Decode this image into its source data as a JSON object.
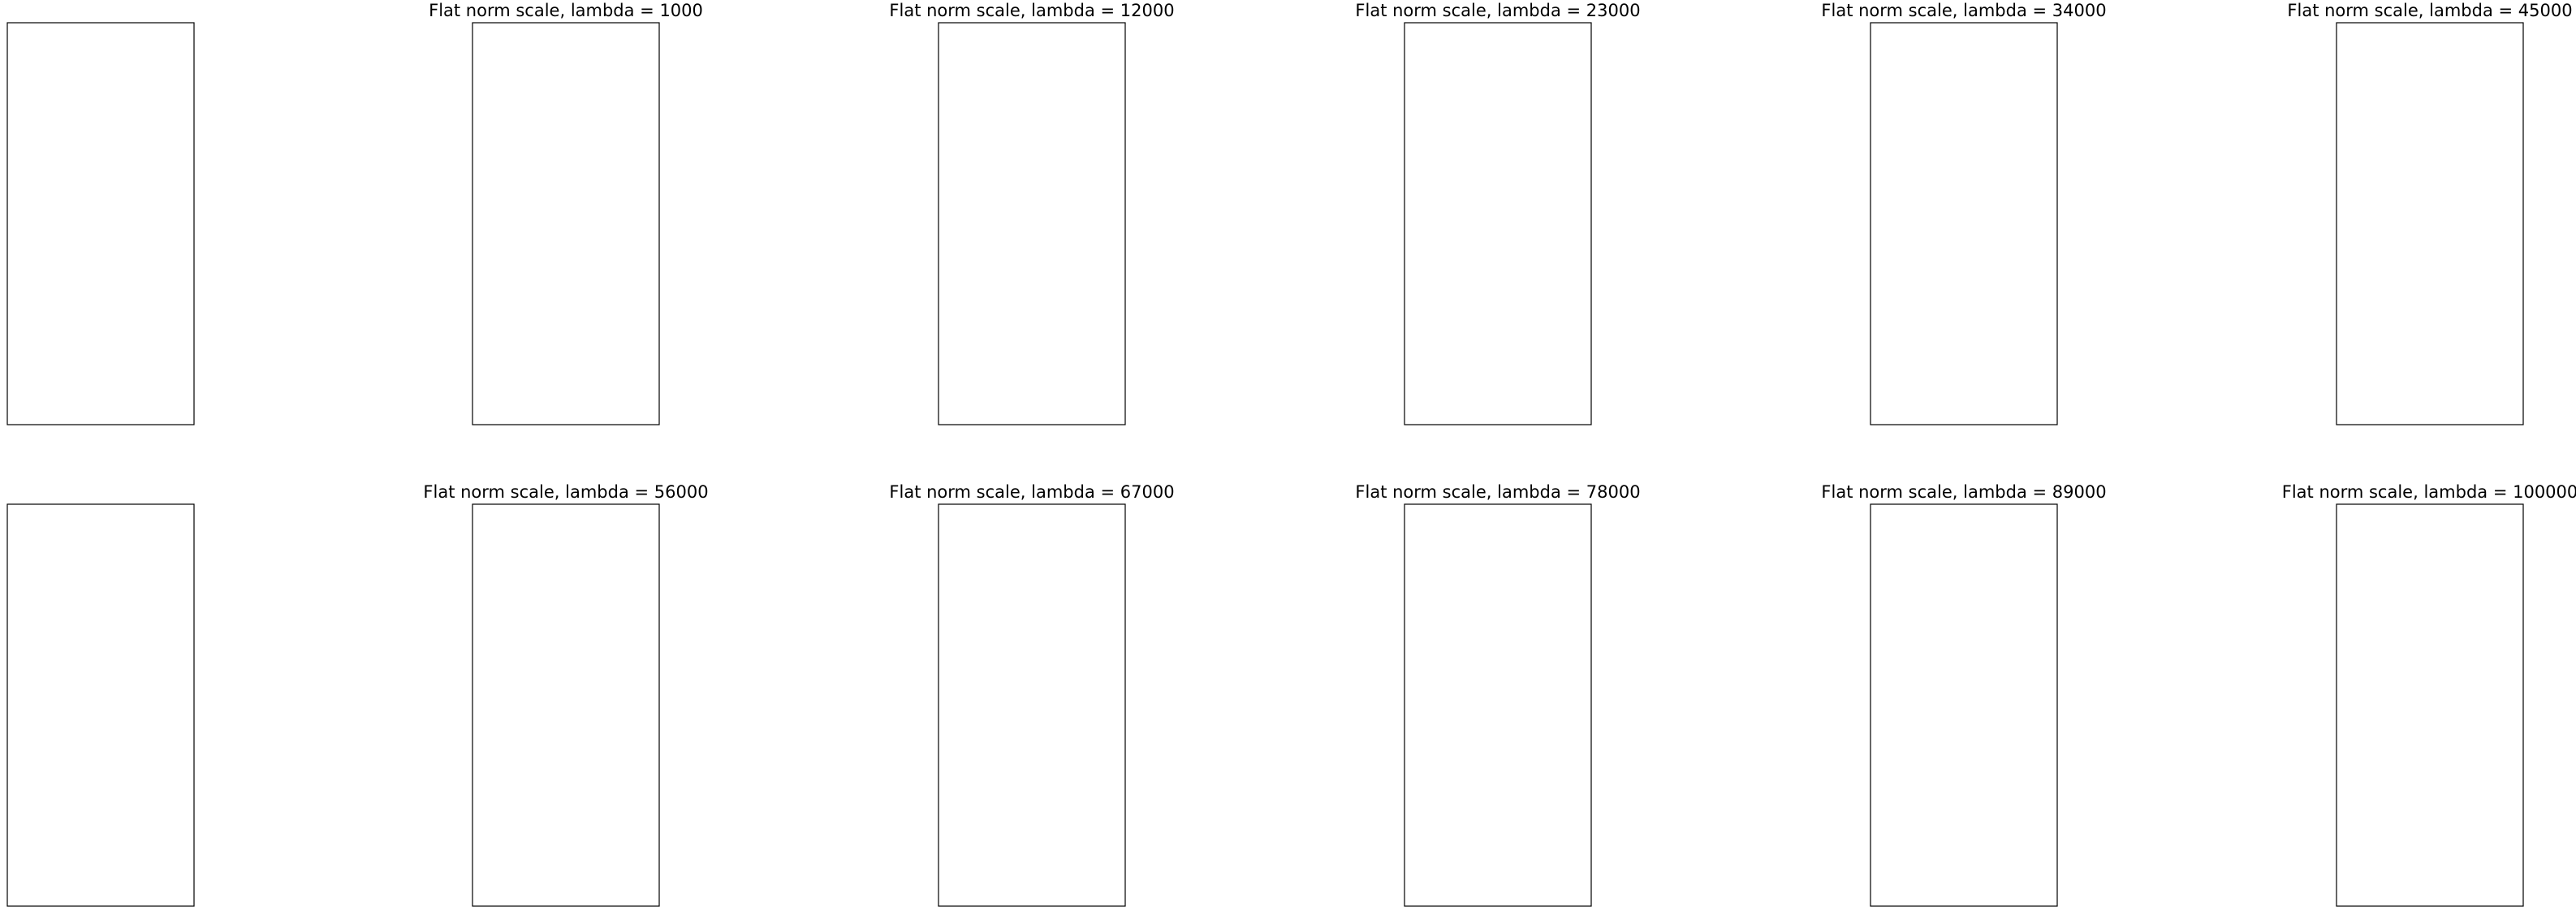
{
  "figure": {
    "panels": [
      {
        "id": "r0c0",
        "kind": "input",
        "title": ""
      },
      {
        "id": "r0c1",
        "kind": "result",
        "title": "Flat norm scale, lambda = 1000",
        "lambda": 1000
      },
      {
        "id": "r0c2",
        "kind": "result",
        "title": "Flat norm scale, lambda = 12000",
        "lambda": 12000
      },
      {
        "id": "r0c3",
        "kind": "result",
        "title": "Flat norm scale, lambda = 23000",
        "lambda": 23000
      },
      {
        "id": "r0c4",
        "kind": "result",
        "title": "Flat norm scale, lambda = 34000",
        "lambda": 34000
      },
      {
        "id": "r0c5",
        "kind": "result",
        "title": "Flat norm scale, lambda = 45000",
        "lambda": 45000
      },
      {
        "id": "r1c0",
        "kind": "pair",
        "title": ""
      },
      {
        "id": "r1c1",
        "kind": "result",
        "title": "Flat norm scale, lambda = 56000",
        "lambda": 56000
      },
      {
        "id": "r1c2",
        "kind": "result",
        "title": "Flat norm scale, lambda = 67000",
        "lambda": 67000
      },
      {
        "id": "r1c3",
        "kind": "result",
        "title": "Flat norm scale, lambda = 78000",
        "lambda": 78000
      },
      {
        "id": "r1c4",
        "kind": "result",
        "title": "Flat norm scale, lambda = 89000",
        "lambda": 89000
      },
      {
        "id": "r1c5",
        "kind": "result",
        "title": "Flat norm scale, lambda = 100000",
        "lambda": 100000
      }
    ],
    "colors": {
      "input_curve": "#ff00ff",
      "triangulation": "#d3d3d3",
      "patch_fill": "#ffc8ff",
      "flat_norm_curve": "#006400",
      "vertex": "#555555",
      "corner": "#000000",
      "curve_a": "#0000cc",
      "curve_b": "#cc0000",
      "frame": "#000000"
    }
  }
}
